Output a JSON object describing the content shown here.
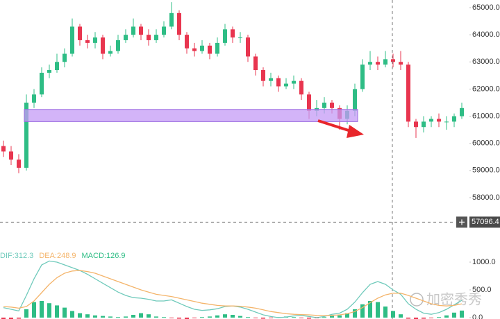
{
  "chart_data": [
    {
      "type": "candlestick",
      "open": [
        59900,
        59700,
        59400,
        59100,
        61500,
        61800,
        62600,
        62700,
        63000,
        63300,
        64300,
        63800,
        63700,
        63900,
        63300,
        63400,
        63800,
        64000,
        64300,
        64000,
        63800,
        64000,
        64300,
        64800,
        64000,
        63500,
        63400,
        63600,
        63300,
        63700,
        64200,
        63900,
        63900,
        63200,
        62700,
        62300,
        62400,
        62100,
        62200,
        62300,
        61800,
        61200,
        61300,
        61500,
        61300,
        60900,
        61200,
        62000,
        62900,
        63000,
        62900,
        63100,
        63000,
        62900,
        60800,
        60600,
        60800,
        60900,
        60800,
        60800,
        61000
      ],
      "high": [
        60100,
        59900,
        59600,
        61800,
        62000,
        62800,
        62900,
        63300,
        63500,
        64600,
        64400,
        64000,
        64100,
        64000,
        63600,
        64000,
        64200,
        64600,
        64400,
        64200,
        64200,
        64500,
        65200,
        64900,
        64100,
        63700,
        63800,
        63700,
        63900,
        64400,
        64300,
        64100,
        64000,
        63300,
        62800,
        62600,
        62500,
        62400,
        62500,
        62400,
        61900,
        61600,
        61700,
        61600,
        61400,
        61400,
        62200,
        63100,
        63400,
        63200,
        63400,
        63300,
        63400,
        63000,
        60900,
        61000,
        61000,
        61100,
        61000,
        61100,
        61500
      ],
      "low": [
        59500,
        59200,
        58900,
        59000,
        61300,
        61700,
        62400,
        62600,
        62800,
        63200,
        63600,
        63500,
        63500,
        63100,
        63200,
        63300,
        63700,
        63900,
        63800,
        63600,
        63700,
        63900,
        64200,
        63800,
        63300,
        63200,
        63300,
        63100,
        63200,
        63600,
        63700,
        63700,
        63000,
        62500,
        62100,
        62100,
        61900,
        62000,
        62000,
        61600,
        60900,
        61000,
        61100,
        61100,
        60500,
        60700,
        61000,
        61900,
        62700,
        62700,
        62800,
        62800,
        62700,
        60600,
        60200,
        60400,
        60600,
        60600,
        60500,
        60600,
        60900
      ],
      "close": [
        59700,
        59400,
        59100,
        61500,
        61800,
        62600,
        62700,
        63000,
        63300,
        64300,
        63800,
        63700,
        63900,
        63300,
        63400,
        63800,
        64000,
        64300,
        64000,
        63800,
        64000,
        64300,
        64800,
        64000,
        63500,
        63400,
        63600,
        63300,
        63700,
        64200,
        63900,
        63900,
        63200,
        62700,
        62300,
        62400,
        62100,
        62200,
        62300,
        61800,
        61200,
        61300,
        61500,
        61300,
        60900,
        61200,
        62000,
        62900,
        63000,
        62900,
        63100,
        63000,
        62900,
        60800,
        60600,
        60800,
        60900,
        60800,
        60800,
        61000,
        61300
      ],
      "up_color": "#2ebd85",
      "down_color": "#e8354f",
      "ylim": [
        57105,
        65281
      ],
      "yticks": [
        {
          "value": 65000,
          "label": "65000.0"
        },
        {
          "value": 64000,
          "label": "64000.0"
        },
        {
          "value": 63000,
          "label": "63000.0"
        },
        {
          "value": 62000,
          "label": "62000.0"
        },
        {
          "value": 61000,
          "label": "61000.0"
        },
        {
          "value": 60000,
          "label": "60000.0"
        },
        {
          "value": 59000,
          "label": "59000.0"
        },
        {
          "value": 58000,
          "label": "58000.0"
        }
      ],
      "zone": [
        60800,
        61250
      ],
      "zone_color": "#c49bf5",
      "crosshair": {
        "value": 57096.4,
        "label": "57096.4"
      },
      "watermark": "加密秀秀"
    },
    {
      "type": "macd",
      "histogram": [
        -30,
        -40,
        -20,
        150,
        280,
        300,
        260,
        220,
        180,
        120,
        80,
        60,
        40,
        30,
        20,
        10,
        20,
        50,
        80,
        60,
        20,
        10,
        -10,
        -20,
        -30,
        -10,
        10,
        20,
        40,
        60,
        50,
        30,
        10,
        -10,
        -20,
        -10,
        10,
        20,
        10,
        -10,
        -20,
        -10,
        10,
        30,
        40,
        80,
        150,
        240,
        300,
        280,
        200,
        120,
        60,
        -20,
        -30,
        -20,
        -10,
        10,
        40,
        90,
        126.9
      ],
      "series": [
        {
          "name": "DIF:312.3",
          "color": "#6fcabb",
          "values": [
            180,
            150,
            120,
            400,
            700,
            950,
            1020,
            1000,
            950,
            900,
            850,
            780,
            700,
            620,
            540,
            460,
            400,
            360,
            350,
            330,
            300,
            300,
            320,
            260,
            200,
            150,
            130,
            140,
            160,
            200,
            210,
            190,
            150,
            100,
            50,
            20,
            0,
            10,
            30,
            40,
            20,
            0,
            20,
            60,
            80,
            150,
            280,
            450,
            600,
            650,
            600,
            500,
            420,
            250,
            150,
            80,
            60,
            90,
            150,
            230,
            312.3
          ]
        },
        {
          "name": "DEA:248.9",
          "color": "#f4b46a",
          "values": [
            200,
            190,
            170,
            200,
            300,
            450,
            600,
            720,
            800,
            840,
            850,
            830,
            800,
            750,
            700,
            650,
            600,
            550,
            500,
            460,
            420,
            400,
            380,
            350,
            320,
            290,
            260,
            240,
            220,
            210,
            210,
            205,
            190,
            170,
            140,
            110,
            90,
            70,
            60,
            55,
            50,
            40,
            35,
            40,
            50,
            70,
            110,
            180,
            270,
            350,
            410,
            440,
            440,
            400,
            350,
            300,
            250,
            220,
            210,
            220,
            248.9
          ]
        }
      ],
      "histogram_name": "MACD:126.9",
      "histogram_color": "#2ebd85",
      "ylim": [
        -25,
        1200
      ],
      "yticks": [
        {
          "value": 1000,
          "label": "1000.0"
        },
        {
          "value": 500,
          "label": "500.0"
        },
        {
          "value": 0,
          "label": "0.0"
        }
      ]
    }
  ]
}
